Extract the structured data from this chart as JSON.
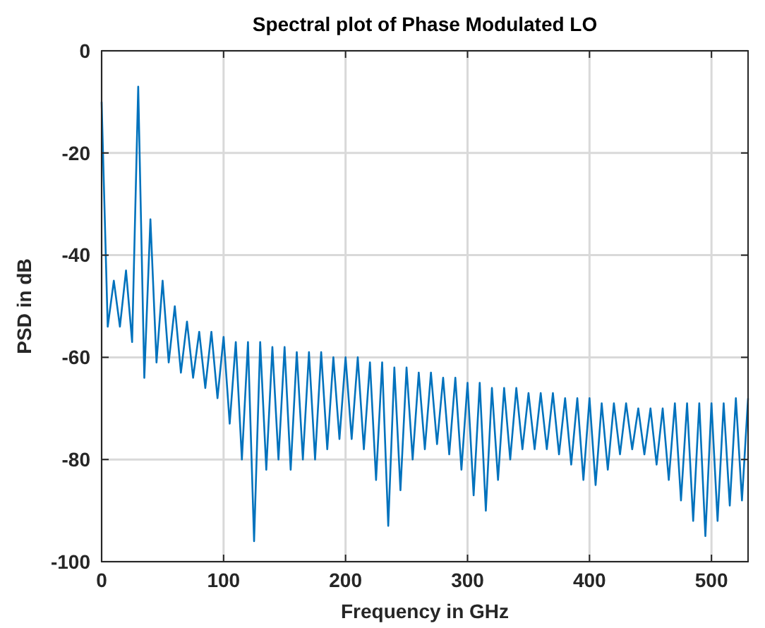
{
  "chart_data": {
    "type": "line",
    "title": "Spectral plot of Phase Modulated LO",
    "xlabel": "Frequency in GHz",
    "ylabel": "PSD in dB",
    "xlim": [
      0,
      530
    ],
    "xticks": [
      0,
      100,
      200,
      300,
      400,
      500
    ],
    "ylim": [
      -100,
      0
    ],
    "yticks": [
      -100,
      -80,
      -60,
      -40,
      -20,
      0
    ],
    "grid": true,
    "marker": "none",
    "line_style": "solid",
    "series": [
      {
        "color": "#0072bd",
        "x": [
          0,
          5,
          10,
          15,
          20,
          25,
          30,
          35,
          40,
          45,
          50,
          55,
          60,
          65,
          70,
          75,
          80,
          85,
          90,
          95,
          100,
          105,
          110,
          115,
          120,
          125,
          130,
          135,
          140,
          145,
          150,
          155,
          160,
          165,
          170,
          175,
          180,
          185,
          190,
          195,
          200,
          205,
          210,
          215,
          220,
          225,
          230,
          235,
          240,
          245,
          250,
          255,
          260,
          265,
          270,
          275,
          280,
          285,
          290,
          295,
          300,
          305,
          310,
          315,
          320,
          325,
          330,
          335,
          340,
          345,
          350,
          355,
          360,
          365,
          370,
          375,
          380,
          385,
          390,
          395,
          400,
          405,
          410,
          415,
          420,
          425,
          430,
          435,
          440,
          445,
          450,
          455,
          460,
          465,
          470,
          475,
          480,
          485,
          490,
          495,
          500,
          505,
          510,
          515,
          520,
          525,
          530
        ],
        "values": [
          -10,
          -54,
          -45,
          -54,
          -43,
          -57,
          -7,
          -64,
          -33,
          -61,
          -45,
          -61,
          -50,
          -63,
          -53,
          -64,
          -55,
          -66,
          -55,
          -68,
          -56,
          -73,
          -57,
          -80,
          -57,
          -96,
          -57,
          -82,
          -58,
          -80,
          -58,
          -82,
          -59,
          -80,
          -59,
          -80,
          -59,
          -78,
          -60,
          -76,
          -60,
          -76,
          -60,
          -78,
          -61,
          -84,
          -61,
          -93,
          -62,
          -86,
          -62,
          -80,
          -63,
          -78,
          -63,
          -77,
          -64,
          -79,
          -64,
          -82,
          -65,
          -87,
          -65,
          -90,
          -66,
          -84,
          -66,
          -80,
          -66,
          -78,
          -67,
          -78,
          -67,
          -78,
          -67,
          -79,
          -68,
          -81,
          -68,
          -84,
          -68,
          -85,
          -69,
          -82,
          -69,
          -79,
          -69,
          -78,
          -70,
          -79,
          -70,
          -81,
          -70,
          -84,
          -69,
          -88,
          -69,
          -92,
          -69,
          -95,
          -69,
          -92,
          -69,
          -89,
          -68,
          -88,
          -68
        ]
      }
    ]
  }
}
